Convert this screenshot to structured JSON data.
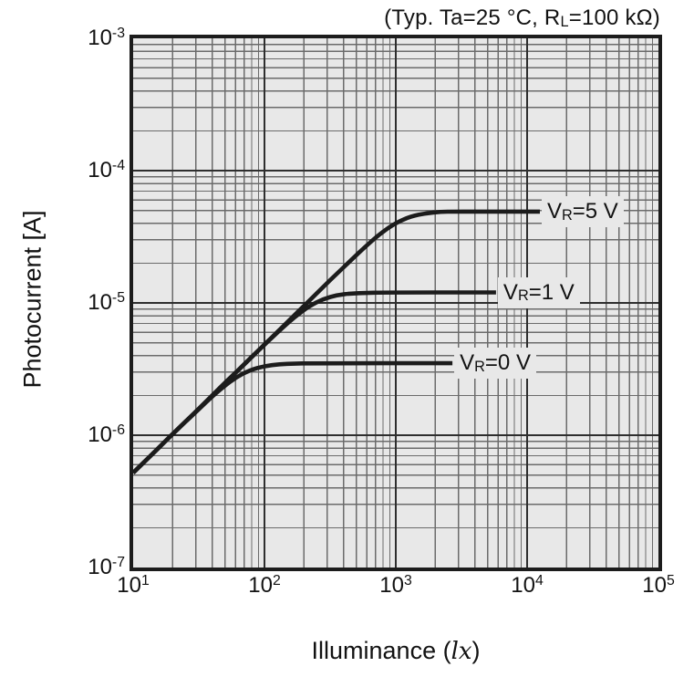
{
  "title": {
    "pre": "(Typ. Ta=25 °C, R",
    "sub": "L",
    "post": "=100 kΩ)"
  },
  "chart_data": {
    "type": "line",
    "title": "(Typ. Ta=25 °C, RL=100 kΩ)",
    "x_axis": {
      "label_pre": "Illuminance (",
      "label_italic": "lx",
      "label_post": ")",
      "scale": "log",
      "min": 10,
      "max": 100000,
      "ticks": [
        {
          "value": 10,
          "base": "10",
          "exp": "1"
        },
        {
          "value": 100,
          "base": "10",
          "exp": "2"
        },
        {
          "value": 1000,
          "base": "10",
          "exp": "3"
        },
        {
          "value": 10000,
          "base": "10",
          "exp": "4"
        },
        {
          "value": 100000,
          "base": "10",
          "exp": "5"
        }
      ]
    },
    "y_axis": {
      "label": "Photocurrent [A]",
      "scale": "log",
      "min": 1e-07,
      "max": 0.001,
      "ticks": [
        {
          "value": 0.001,
          "base": "10",
          "exp": "-3"
        },
        {
          "value": 0.0001,
          "base": "10",
          "exp": "-4"
        },
        {
          "value": 1e-05,
          "base": "10",
          "exp": "-5"
        },
        {
          "value": 1e-06,
          "base": "10",
          "exp": "-6"
        },
        {
          "value": 1e-07,
          "base": "10",
          "exp": "-7"
        }
      ]
    },
    "grid": {
      "minor_steps": [
        2,
        3,
        4,
        5,
        6,
        7,
        8,
        9
      ],
      "background_color": "#e8e8e8",
      "minor_color": "#6b6b6b",
      "major_color": "#2e2e2e",
      "frame_color": "#1c1c1c"
    },
    "series": [
      {
        "name": "VR=5 V",
        "label": {
          "pre": "V",
          "sub": "R",
          "post": "=5 V"
        },
        "color": "#1c1c1c",
        "saturation_current": 4.9e-05,
        "points": [
          [
            10,
            5.2e-07
          ],
          [
            13,
            6.7e-07
          ],
          [
            17,
            8.7e-07
          ],
          [
            22,
            1.12e-06
          ],
          [
            28,
            1.41e-06
          ],
          [
            36,
            1.8e-06
          ],
          [
            46,
            2.29e-06
          ],
          [
            60,
            2.96e-06
          ],
          [
            77,
            3.77e-06
          ],
          [
            100,
            4.85e-06
          ],
          [
            130,
            6.25e-06
          ],
          [
            170,
            8.12e-06
          ],
          [
            220,
            1.04e-05
          ],
          [
            280,
            1.32e-05
          ],
          [
            360,
            1.68e-05
          ],
          [
            460,
            2.12e-05
          ],
          [
            600,
            2.72e-05
          ],
          [
            770,
            3.37e-05
          ],
          [
            1000,
            4.03e-05
          ],
          [
            1300,
            4.51e-05
          ],
          [
            1700,
            4.76e-05
          ],
          [
            2200,
            4.89e-05
          ],
          [
            2800,
            4.9e-05
          ],
          [
            12500,
            4.9e-05
          ]
        ]
      },
      {
        "name": "VR=1 V",
        "label": {
          "pre": "V",
          "sub": "R",
          "post": "=1 V"
        },
        "color": "#1c1c1c",
        "saturation_current": 1.2e-05,
        "points": [
          [
            10,
            5.2e-07
          ],
          [
            13,
            6.7e-07
          ],
          [
            17,
            8.7e-07
          ],
          [
            22,
            1.12e-06
          ],
          [
            28,
            1.41e-06
          ],
          [
            36,
            1.8e-06
          ],
          [
            46,
            2.29e-06
          ],
          [
            60,
            2.95e-06
          ],
          [
            77,
            3.75e-06
          ],
          [
            100,
            4.83e-06
          ],
          [
            130,
            6.18e-06
          ],
          [
            170,
            7.84e-06
          ],
          [
            220,
            9.47e-06
          ],
          [
            280,
            1.07e-05
          ],
          [
            360,
            1.15e-05
          ],
          [
            460,
            1.18e-05
          ],
          [
            600,
            1.19e-05
          ],
          [
            770,
            1.2e-05
          ],
          [
            5800,
            1.2e-05
          ]
        ]
      },
      {
        "name": "VR=0 V",
        "label": {
          "pre": "V",
          "sub": "R",
          "post": "=0 V"
        },
        "color": "#1c1c1c",
        "saturation_current": 3.5e-06,
        "points": [
          [
            10,
            5.2e-07
          ],
          [
            13,
            6.7e-07
          ],
          [
            17,
            8.7e-07
          ],
          [
            22,
            1.12e-06
          ],
          [
            28,
            1.4e-06
          ],
          [
            36,
            1.78e-06
          ],
          [
            46,
            2.22e-06
          ],
          [
            60,
            2.72e-06
          ],
          [
            77,
            3.1e-06
          ],
          [
            100,
            3.33e-06
          ],
          [
            130,
            3.44e-06
          ],
          [
            170,
            3.48e-06
          ],
          [
            220,
            3.5e-06
          ],
          [
            2700,
            3.5e-06
          ]
        ]
      }
    ]
  }
}
